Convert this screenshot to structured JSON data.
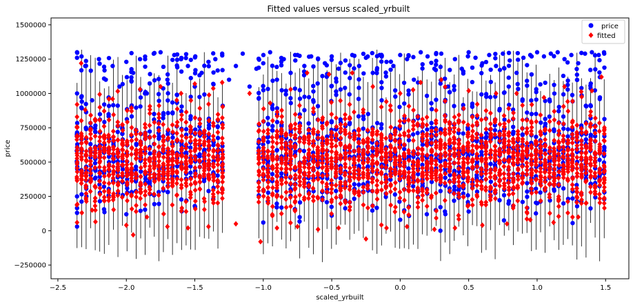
{
  "chart_data": {
    "type": "scatter",
    "title": "Fitted values versus scaled_yrbuilt",
    "xlabel": "scaled_yrbuilt",
    "ylabel": "price",
    "xlim": [
      -2.55,
      1.67
    ],
    "ylim": [
      -350000,
      1550000
    ],
    "x_ticks": [
      -2.5,
      -2.0,
      -1.5,
      -1.0,
      -0.5,
      0.0,
      0.5,
      1.0,
      1.5
    ],
    "x_tick_labels": [
      "−2.5",
      "−2.0",
      "−1.5",
      "−1.0",
      "−0.5",
      "0.0",
      "0.5",
      "1.0",
      "1.5"
    ],
    "y_ticks": [
      -250000,
      0,
      250000,
      500000,
      750000,
      1000000,
      1250000,
      1500000
    ],
    "y_tick_labels": [
      "−250000",
      "0",
      "250000",
      "500000",
      "750000",
      "1000000",
      "1250000",
      "1500000"
    ],
    "grid": false,
    "legend_position": "top-right",
    "x_range_observed": [
      -2.36,
      1.49
    ],
    "series": [
      {
        "name": "price",
        "marker": "circle",
        "color": "#0000ff",
        "points": [
          [
            -2.36,
            1300000
          ],
          [
            -2.36,
            1260000
          ],
          [
            -2.36,
            1000000
          ],
          [
            -2.36,
            700000
          ],
          [
            -2.36,
            500000
          ],
          [
            -2.36,
            250000
          ],
          [
            -2.36,
            130000
          ],
          [
            -2.3,
            1200000
          ],
          [
            -2.25,
            950000
          ],
          [
            -2.2,
            1250000
          ],
          [
            -2.15,
            1100000
          ],
          [
            -2.1,
            1200000
          ],
          [
            -2.05,
            1050000
          ],
          [
            -2.0,
            1230000
          ],
          [
            -1.95,
            1150000
          ],
          [
            -1.9,
            1250000
          ],
          [
            -1.85,
            1000000
          ],
          [
            -1.8,
            1290000
          ],
          [
            -1.75,
            1300000
          ],
          [
            -1.7,
            1100000
          ],
          [
            -1.65,
            1280000
          ],
          [
            -1.6,
            1250000
          ],
          [
            -1.55,
            1200000
          ],
          [
            -1.5,
            1050000
          ],
          [
            -1.45,
            1150000
          ],
          [
            -1.4,
            1230000
          ],
          [
            -1.35,
            1250000
          ],
          [
            -1.3,
            1290000
          ],
          [
            -1.25,
            1100000
          ],
          [
            -1.2,
            1200000
          ],
          [
            -1.15,
            1290000
          ],
          [
            -1.1,
            1050000
          ],
          [
            -1.05,
            1180000
          ],
          [
            -1.0,
            1220000
          ],
          [
            -0.95,
            1300000
          ],
          [
            -0.9,
            1100000
          ],
          [
            -0.85,
            1250000
          ],
          [
            -0.8,
            1150000
          ],
          [
            -0.75,
            1280000
          ],
          [
            -0.7,
            1200000
          ],
          [
            -0.65,
            1270000
          ],
          [
            -0.6,
            1250000
          ],
          [
            -0.55,
            1220000
          ],
          [
            -0.5,
            1270000
          ],
          [
            -0.45,
            1180000
          ],
          [
            -0.4,
            1240000
          ],
          [
            -0.35,
            1280000
          ],
          [
            -0.3,
            1200000
          ],
          [
            -0.25,
            1260000
          ],
          [
            -0.2,
            1150000
          ],
          [
            -0.15,
            1280000
          ],
          [
            -0.1,
            1230000
          ],
          [
            -0.05,
            1200000
          ],
          [
            0.0,
            1280000
          ],
          [
            0.05,
            1250000
          ],
          [
            0.1,
            1100000
          ],
          [
            0.15,
            1300000
          ],
          [
            0.2,
            1270000
          ],
          [
            0.25,
            1180000
          ],
          [
            0.3,
            1290000
          ],
          [
            0.35,
            1050000
          ],
          [
            0.4,
            1250000
          ],
          [
            0.45,
            1180000
          ],
          [
            0.5,
            1300000
          ],
          [
            0.55,
            1260000
          ],
          [
            0.6,
            1220000
          ],
          [
            0.65,
            1280000
          ],
          [
            0.7,
            1200000
          ],
          [
            0.75,
            1290000
          ],
          [
            0.8,
            1240000
          ],
          [
            0.85,
            1150000
          ],
          [
            0.9,
            1260000
          ],
          [
            0.95,
            1280000
          ],
          [
            1.0,
            1300000
          ],
          [
            1.05,
            1270000
          ],
          [
            1.1,
            1290000
          ],
          [
            1.15,
            1300000
          ],
          [
            1.2,
            1250000
          ],
          [
            1.25,
            1280000
          ],
          [
            1.3,
            1220000
          ],
          [
            1.35,
            1290000
          ],
          [
            1.4,
            1300000
          ],
          [
            1.45,
            1280000
          ],
          [
            1.49,
            1290000
          ],
          [
            -2.36,
            30000
          ],
          [
            -2.0,
            120000
          ],
          [
            -1.5,
            180000
          ],
          [
            -1.0,
            60000
          ],
          [
            -0.5,
            110000
          ],
          [
            0.0,
            80000
          ],
          [
            0.5,
            140000
          ],
          [
            1.0,
            200000
          ],
          [
            1.49,
            230000
          ]
        ]
      },
      {
        "name": "fitted",
        "marker": "diamond",
        "color": "#ff0000",
        "points": [
          [
            -2.33,
            1220000
          ],
          [
            -2.36,
            920000
          ],
          [
            -2.36,
            60000
          ],
          [
            -2.3,
            880000
          ],
          [
            -2.25,
            150000
          ],
          [
            -2.1,
            960000
          ],
          [
            -2.0,
            40000
          ],
          [
            -1.95,
            -30000
          ],
          [
            -1.9,
            1030000
          ],
          [
            -1.85,
            100000
          ],
          [
            -1.75,
            1050000
          ],
          [
            -1.7,
            30000
          ],
          [
            -1.6,
            1000000
          ],
          [
            -1.55,
            20000
          ],
          [
            -1.5,
            1070000
          ],
          [
            -1.4,
            30000
          ],
          [
            -1.3,
            1080000
          ],
          [
            -1.2,
            50000
          ],
          [
            -1.1,
            1000000
          ],
          [
            -1.02,
            -80000
          ],
          [
            -0.95,
            930000
          ],
          [
            -0.9,
            20000
          ],
          [
            -0.8,
            1030000
          ],
          [
            -0.75,
            30000
          ],
          [
            -0.68,
            1150000
          ],
          [
            -0.6,
            10000
          ],
          [
            -0.52,
            1140000
          ],
          [
            -0.45,
            20000
          ],
          [
            -0.35,
            1150000
          ],
          [
            -0.25,
            -60000
          ],
          [
            -0.2,
            1050000
          ],
          [
            -0.1,
            20000
          ],
          [
            0.0,
            1000000
          ],
          [
            0.05,
            30000
          ],
          [
            0.15,
            1080000
          ],
          [
            0.25,
            10000
          ],
          [
            0.3,
            1100000
          ],
          [
            0.4,
            20000
          ],
          [
            0.5,
            1020000
          ],
          [
            0.6,
            40000
          ],
          [
            0.7,
            1000000
          ],
          [
            0.78,
            50000
          ],
          [
            0.85,
            1000000
          ],
          [
            0.95,
            80000
          ],
          [
            1.05,
            970000
          ],
          [
            1.12,
            60000
          ],
          [
            1.2,
            1050000
          ],
          [
            1.3,
            100000
          ],
          [
            1.4,
            1020000
          ],
          [
            1.47,
            1120000
          ],
          [
            1.49,
            200000
          ]
        ]
      }
    ],
    "error_bars": {
      "color": "#000000",
      "range_low": -280000,
      "range_high": 1430000
    },
    "point_cloud": {
      "price_center": 530000,
      "price_spread": 300000,
      "fitted_center": 520000,
      "fitted_spread": 230000,
      "fitted_range": [
        -80000,
        1220000
      ]
    }
  }
}
